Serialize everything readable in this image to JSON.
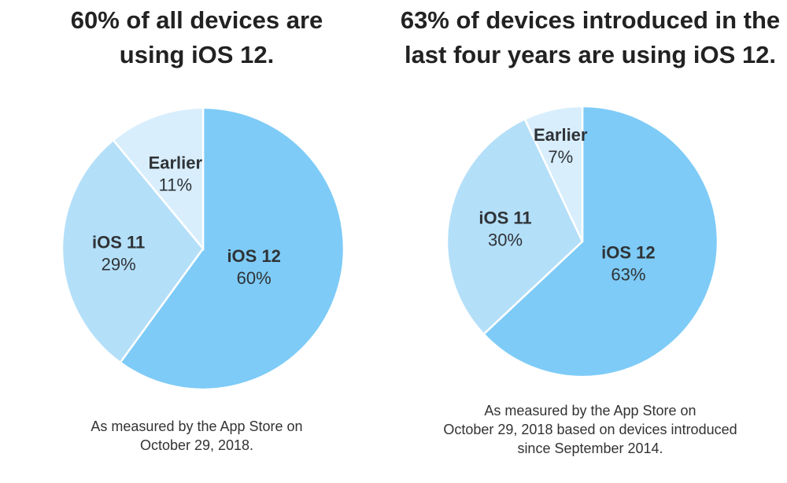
{
  "colors": {
    "ios12": "#7ecbf7",
    "ios11": "#b4dff9",
    "earlier": "#d8eefc",
    "text": "#2f3337"
  },
  "chart_data": [
    {
      "type": "pie",
      "title_lines": [
        "60% of all devices are",
        "using iOS 12."
      ],
      "slices": [
        {
          "label": "iOS 12",
          "value": 60,
          "value_label": "60%"
        },
        {
          "label": "iOS 11",
          "value": 29,
          "value_label": "29%"
        },
        {
          "label": "Earlier",
          "value": 11,
          "value_label": "11%"
        }
      ],
      "caption_lines": [
        "As measured by the App Store on",
        "October 29, 2018."
      ]
    },
    {
      "type": "pie",
      "title_lines": [
        "63% of devices introduced in the",
        "last four years are using iOS 12."
      ],
      "slices": [
        {
          "label": "iOS 12",
          "value": 63,
          "value_label": "63%"
        },
        {
          "label": "iOS 11",
          "value": 30,
          "value_label": "30%"
        },
        {
          "label": "Earlier",
          "value": 7,
          "value_label": "7%"
        }
      ],
      "caption_lines": [
        "As measured by the App Store on",
        "October 29, 2018 based on devices introduced",
        "since September 2014."
      ]
    }
  ]
}
